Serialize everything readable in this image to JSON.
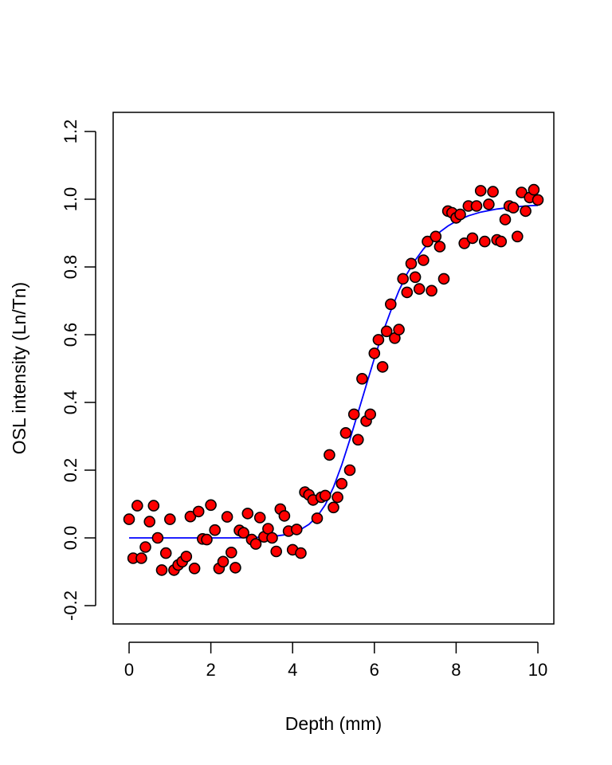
{
  "chart_data": {
    "type": "scatter",
    "title": "",
    "xlabel": "Depth (mm)",
    "ylabel": "OSL intensity (Ln/Tn)",
    "xlim": [
      0,
      10
    ],
    "ylim": [
      -0.2,
      1.2
    ],
    "x_ticks": [
      0,
      2,
      4,
      6,
      8,
      10
    ],
    "y_ticks": [
      -0.2,
      0.0,
      0.2,
      0.4,
      0.6,
      0.8,
      1.0,
      1.2
    ],
    "x_tick_labels": [
      "0",
      "2",
      "4",
      "6",
      "8",
      "10"
    ],
    "y_tick_labels": [
      "-0.2",
      "0.0",
      "0.2",
      "0.4",
      "0.6",
      "0.8",
      "1.0",
      "1.2"
    ],
    "grid": false,
    "legend": "none",
    "colors": {
      "points_fill": "#ff0000",
      "points_stroke": "#000000",
      "curve": "#0000ff"
    },
    "points": [
      [
        0.0,
        0.055
      ],
      [
        0.1,
        -0.06
      ],
      [
        0.2,
        0.095
      ],
      [
        0.3,
        -0.06
      ],
      [
        0.4,
        -0.027
      ],
      [
        0.5,
        0.048
      ],
      [
        0.6,
        0.095
      ],
      [
        0.7,
        0.0
      ],
      [
        0.8,
        -0.095
      ],
      [
        0.9,
        -0.045
      ],
      [
        1.0,
        0.055
      ],
      [
        1.1,
        -0.095
      ],
      [
        1.2,
        -0.08
      ],
      [
        1.3,
        -0.07
      ],
      [
        1.4,
        -0.055
      ],
      [
        1.5,
        0.063
      ],
      [
        1.6,
        -0.09
      ],
      [
        1.7,
        0.078
      ],
      [
        1.8,
        -0.003
      ],
      [
        1.9,
        -0.005
      ],
      [
        2.0,
        0.097
      ],
      [
        2.1,
        0.023
      ],
      [
        2.2,
        -0.09
      ],
      [
        2.3,
        -0.07
      ],
      [
        2.4,
        0.062
      ],
      [
        2.5,
        -0.043
      ],
      [
        2.6,
        -0.088
      ],
      [
        2.7,
        0.022
      ],
      [
        2.8,
        0.015
      ],
      [
        2.9,
        0.072
      ],
      [
        3.0,
        -0.005
      ],
      [
        3.1,
        -0.018
      ],
      [
        3.2,
        0.06
      ],
      [
        3.3,
        0.003
      ],
      [
        3.4,
        0.027
      ],
      [
        3.5,
        0.0
      ],
      [
        3.6,
        -0.04
      ],
      [
        3.7,
        0.085
      ],
      [
        3.8,
        0.065
      ],
      [
        3.9,
        0.02
      ],
      [
        4.0,
        -0.035
      ],
      [
        4.1,
        0.025
      ],
      [
        4.2,
        -0.045
      ],
      [
        4.3,
        0.135
      ],
      [
        4.4,
        0.127
      ],
      [
        4.5,
        0.112
      ],
      [
        4.6,
        0.058
      ],
      [
        4.7,
        0.12
      ],
      [
        4.8,
        0.125
      ],
      [
        4.9,
        0.245
      ],
      [
        5.0,
        0.09
      ],
      [
        5.1,
        0.12
      ],
      [
        5.2,
        0.16
      ],
      [
        5.3,
        0.31
      ],
      [
        5.4,
        0.2
      ],
      [
        5.5,
        0.365
      ],
      [
        5.6,
        0.29
      ],
      [
        5.7,
        0.47
      ],
      [
        5.8,
        0.345
      ],
      [
        5.9,
        0.365
      ],
      [
        6.0,
        0.545
      ],
      [
        6.1,
        0.585
      ],
      [
        6.2,
        0.505
      ],
      [
        6.3,
        0.61
      ],
      [
        6.4,
        0.69
      ],
      [
        6.5,
        0.59
      ],
      [
        6.6,
        0.615
      ],
      [
        6.7,
        0.765
      ],
      [
        6.8,
        0.725
      ],
      [
        6.9,
        0.81
      ],
      [
        7.0,
        0.77
      ],
      [
        7.1,
        0.735
      ],
      [
        7.2,
        0.82
      ],
      [
        7.3,
        0.875
      ],
      [
        7.4,
        0.73
      ],
      [
        7.5,
        0.89
      ],
      [
        7.6,
        0.86
      ],
      [
        7.7,
        0.765
      ],
      [
        7.8,
        0.965
      ],
      [
        7.9,
        0.96
      ],
      [
        8.0,
        0.945
      ],
      [
        8.1,
        0.955
      ],
      [
        8.2,
        0.87
      ],
      [
        8.3,
        0.98
      ],
      [
        8.4,
        0.885
      ],
      [
        8.5,
        0.98
      ],
      [
        8.6,
        1.025
      ],
      [
        8.7,
        0.875
      ],
      [
        8.8,
        0.985
      ],
      [
        8.9,
        1.022
      ],
      [
        9.0,
        0.88
      ],
      [
        9.1,
        0.875
      ],
      [
        9.2,
        0.94
      ],
      [
        9.3,
        0.98
      ],
      [
        9.4,
        0.975
      ],
      [
        9.5,
        0.89
      ],
      [
        9.6,
        1.02
      ],
      [
        9.7,
        0.965
      ],
      [
        9.8,
        1.005
      ],
      [
        9.9,
        1.028
      ],
      [
        10.0,
        0.998
      ]
    ],
    "curve": {
      "x": [
        0,
        0.5,
        1,
        1.5,
        2,
        2.5,
        3,
        3.5,
        3.8,
        4,
        4.2,
        4.4,
        4.6,
        4.8,
        5,
        5.2,
        5.4,
        5.6,
        5.8,
        6,
        6.2,
        6.4,
        6.6,
        6.8,
        7,
        7.2,
        7.4,
        7.6,
        7.8,
        8,
        8.3,
        8.6,
        9,
        9.4,
        9.8,
        10
      ],
      "y": [
        0.0,
        0.0,
        0.0,
        0.0,
        0.0,
        0.0,
        0.001,
        0.004,
        0.009,
        0.015,
        0.025,
        0.04,
        0.063,
        0.098,
        0.15,
        0.215,
        0.29,
        0.37,
        0.45,
        0.53,
        0.605,
        0.67,
        0.73,
        0.78,
        0.82,
        0.853,
        0.88,
        0.903,
        0.921,
        0.935,
        0.951,
        0.962,
        0.971,
        0.977,
        0.981,
        0.982
      ]
    }
  }
}
